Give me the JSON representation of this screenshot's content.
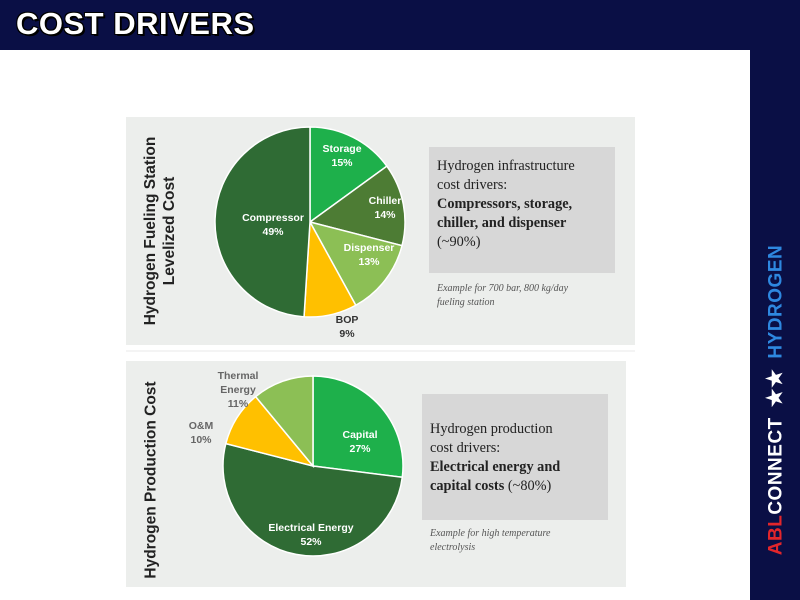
{
  "header": {
    "title": "COST DRIVERS"
  },
  "brand": {
    "abl": "ABL",
    "connect": "CONNECT",
    "stars": "★★",
    "hydrogen": "HYDROGEN"
  },
  "colors": {
    "navy": "#0a0f45",
    "dark_green": "#2f6b34",
    "bright_green": "#1eb04b",
    "olive_green": "#4d7c34",
    "light_green": "#8cbf55",
    "yellow": "#ffc000"
  },
  "panels": [
    {
      "vertical_label": [
        "Hydrogen Fueling Station",
        "Levelized Cost"
      ],
      "info_lines": [
        "Hydrogen infrastructure",
        "cost drivers:"
      ],
      "info_bold_lines": [
        "Compressors, storage,",
        "chiller, and dispenser"
      ],
      "info_tail": "(~90%)",
      "note_lines": [
        "Example for 700 bar, 800 kg/day",
        "fueling station"
      ]
    },
    {
      "vertical_label": [
        "Hydrogen Production Cost"
      ],
      "info_lines": [
        "Hydrogen production",
        "cost drivers:"
      ],
      "info_bold_lines": [
        "Electrical energy and"
      ],
      "info_bold_tail": "capital costs",
      "info_tail": " (~80%)",
      "note_lines": [
        "Example for high temperature",
        "electrolysis"
      ]
    }
  ],
  "chart_data": [
    {
      "type": "pie",
      "title": "Hydrogen Fueling Station Levelized Cost",
      "slices": [
        {
          "label": "Storage",
          "value": 15,
          "pct_label": "15%",
          "color": "#1eb04b",
          "text_color": "#ffffff"
        },
        {
          "label": "Chiller",
          "value": 14,
          "pct_label": "14%",
          "color": "#4d7c34",
          "text_color": "#ffffff"
        },
        {
          "label": "Dispenser",
          "value": 13,
          "pct_label": "13%",
          "color": "#8cbf55",
          "text_color": "#ffffff"
        },
        {
          "label": "BOP",
          "value": 9,
          "pct_label": "9%",
          "color": "#ffc000",
          "text_color": "#333333"
        },
        {
          "label": "Compressor",
          "value": 49,
          "pct_label": "49%",
          "color": "#2f6b34",
          "text_color": "#ffffff"
        }
      ]
    },
    {
      "type": "pie",
      "title": "Hydrogen Production Cost",
      "slices": [
        {
          "label": "Capital",
          "value": 27,
          "pct_label": "27%",
          "color": "#1eb04b",
          "text_color": "#ffffff"
        },
        {
          "label": "Electrical Energy",
          "value": 52,
          "pct_label": "52%",
          "color": "#2f6b34",
          "text_color": "#ffffff"
        },
        {
          "label": "O&M",
          "value": 10,
          "pct_label": "10%",
          "color": "#ffc000",
          "text_color": "#666666"
        },
        {
          "label": "Thermal Energy",
          "value": 11,
          "pct_label": "11%",
          "color": "#8cbf55",
          "text_color": "#666666"
        }
      ]
    }
  ]
}
